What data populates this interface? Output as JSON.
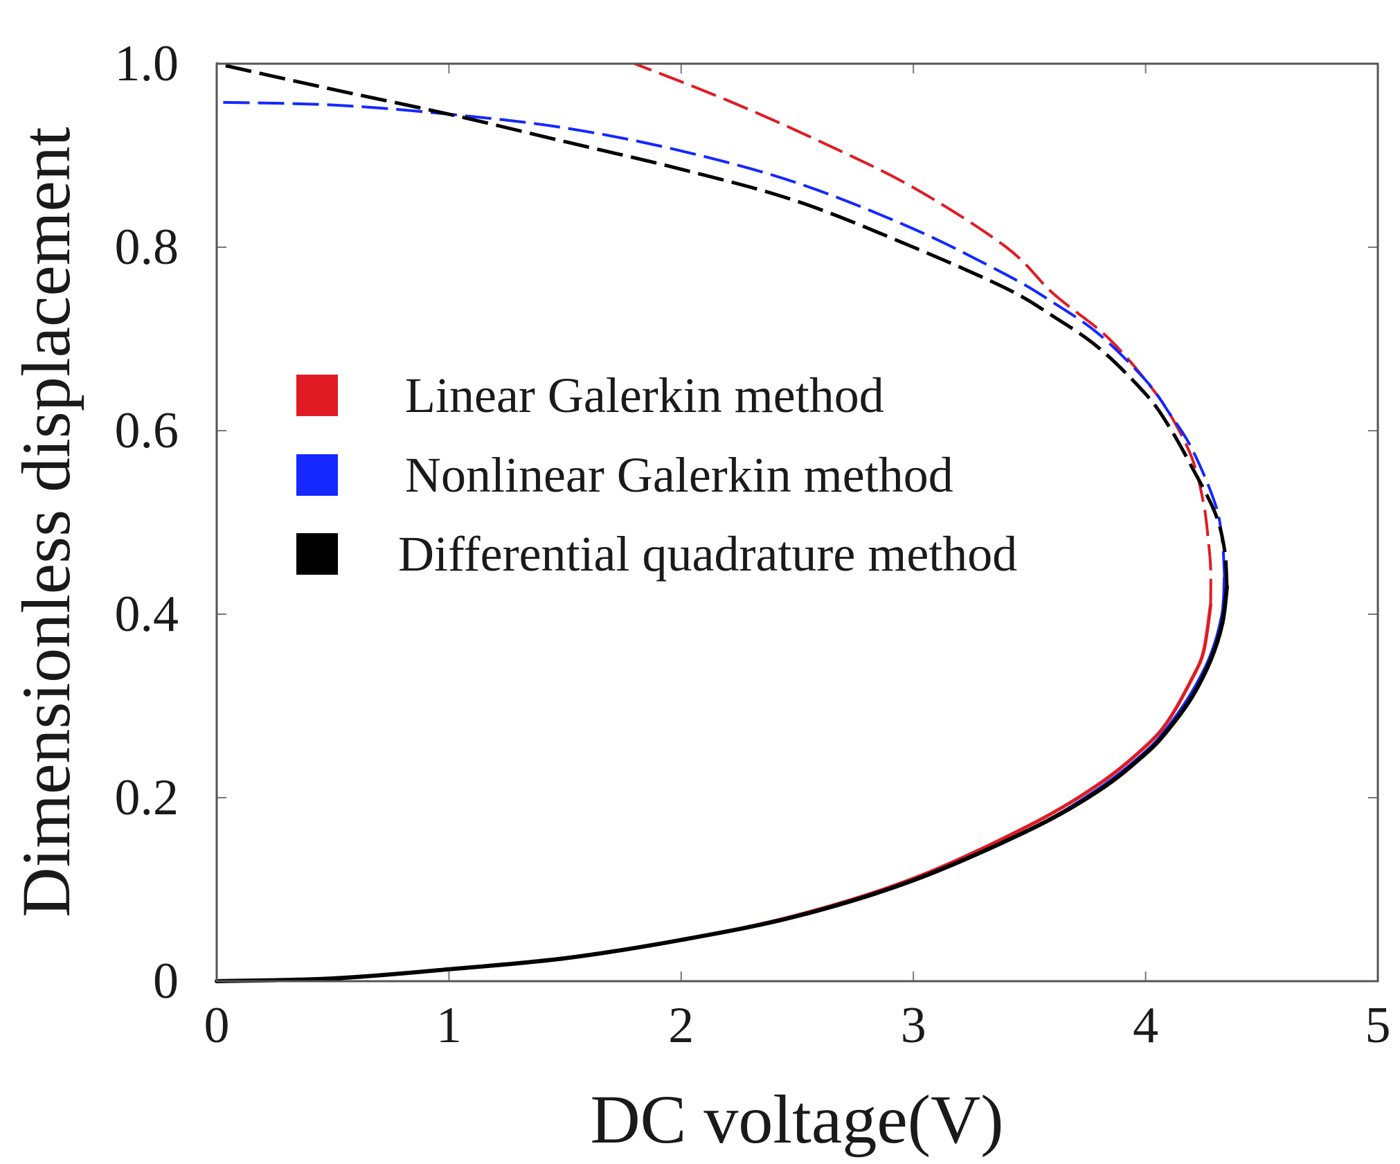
{
  "chart_data": {
    "type": "line",
    "title": "",
    "xlabel": "DC voltage(V)",
    "ylabel": "Dimensionless displacement",
    "xlim": [
      0,
      5
    ],
    "ylim": [
      0,
      1.0
    ],
    "x_ticks": [
      {
        "value": 0,
        "label": "0"
      },
      {
        "value": 1,
        "label": "1"
      },
      {
        "value": 2,
        "label": "2"
      },
      {
        "value": 3,
        "label": "3"
      },
      {
        "value": 4,
        "label": "4"
      },
      {
        "value": 5,
        "label": "5"
      }
    ],
    "y_ticks": [
      {
        "value": 0,
        "label": "0"
      },
      {
        "value": 0.2,
        "label": "0.2"
      },
      {
        "value": 0.4,
        "label": "0.4"
      },
      {
        "value": 0.6,
        "label": "0.6"
      },
      {
        "value": 0.8,
        "label": "0.8"
      },
      {
        "value": 1.0,
        "label": "1.0"
      }
    ],
    "legend_position": "center-left",
    "series": [
      {
        "name": "Linear Galerkin method",
        "color": "#e01b24",
        "points": [
          [
            0,
            0
          ],
          [
            0.5,
            0.003
          ],
          [
            1,
            0.013
          ],
          [
            1.5,
            0.025
          ],
          [
            2,
            0.045
          ],
          [
            2.5,
            0.072
          ],
          [
            3,
            0.112
          ],
          [
            3.5,
            0.17
          ],
          [
            3.8,
            0.215
          ],
          [
            4.0,
            0.256
          ],
          [
            4.1,
            0.285
          ],
          [
            4.2,
            0.33
          ],
          [
            4.25,
            0.36
          ],
          [
            4.28,
            0.41
          ],
          [
            4.28,
            0.45
          ],
          [
            4.27,
            0.48
          ],
          [
            4.25,
            0.52
          ],
          [
            4.2,
            0.57
          ],
          [
            4.1,
            0.62
          ],
          [
            4.0,
            0.655
          ],
          [
            3.9,
            0.685
          ],
          [
            3.8,
            0.71
          ],
          [
            3.6,
            0.75
          ],
          [
            3.4,
            0.8
          ],
          [
            3.0,
            0.865
          ],
          [
            2.6,
            0.915
          ],
          [
            2.2,
            0.96
          ],
          [
            1.8,
            1.0
          ]
        ]
      },
      {
        "name": "Nonlinear Galerkin method",
        "color": "#1428ff",
        "points": [
          [
            0,
            0
          ],
          [
            0.5,
            0.003
          ],
          [
            1,
            0.013
          ],
          [
            1.5,
            0.025
          ],
          [
            2,
            0.045
          ],
          [
            2.5,
            0.071
          ],
          [
            3,
            0.11
          ],
          [
            3.5,
            0.165
          ],
          [
            3.8,
            0.21
          ],
          [
            4.0,
            0.25
          ],
          [
            4.1,
            0.278
          ],
          [
            4.2,
            0.315
          ],
          [
            4.28,
            0.355
          ],
          [
            4.33,
            0.4
          ],
          [
            4.34,
            0.44
          ],
          [
            4.33,
            0.48
          ],
          [
            4.3,
            0.52
          ],
          [
            4.2,
            0.58
          ],
          [
            4.1,
            0.62
          ],
          [
            4.0,
            0.655
          ],
          [
            3.8,
            0.705
          ],
          [
            3.6,
            0.74
          ],
          [
            3.4,
            0.77
          ],
          [
            3.0,
            0.82
          ],
          [
            2.5,
            0.87
          ],
          [
            2.0,
            0.905
          ],
          [
            1.5,
            0.93
          ],
          [
            1.0,
            0.945
          ],
          [
            0.5,
            0.955
          ],
          [
            0,
            0.958
          ]
        ]
      },
      {
        "name": "Differential quadrature method",
        "color": "#000000",
        "points": [
          [
            0,
            0
          ],
          [
            0.5,
            0.003
          ],
          [
            1,
            0.013
          ],
          [
            1.5,
            0.025
          ],
          [
            2,
            0.045
          ],
          [
            2.5,
            0.071
          ],
          [
            3,
            0.11
          ],
          [
            3.5,
            0.165
          ],
          [
            3.8,
            0.208
          ],
          [
            4.0,
            0.248
          ],
          [
            4.1,
            0.275
          ],
          [
            4.2,
            0.31
          ],
          [
            4.28,
            0.35
          ],
          [
            4.33,
            0.39
          ],
          [
            4.35,
            0.43
          ],
          [
            4.34,
            0.47
          ],
          [
            4.3,
            0.51
          ],
          [
            4.2,
            0.56
          ],
          [
            4.1,
            0.605
          ],
          [
            4.0,
            0.64
          ],
          [
            3.8,
            0.69
          ],
          [
            3.6,
            0.725
          ],
          [
            3.4,
            0.755
          ],
          [
            3.0,
            0.8
          ],
          [
            2.5,
            0.85
          ],
          [
            2.0,
            0.885
          ],
          [
            1.5,
            0.915
          ],
          [
            1.0,
            0.945
          ],
          [
            0.5,
            0.972
          ],
          [
            0,
            1.0
          ]
        ]
      }
    ]
  }
}
